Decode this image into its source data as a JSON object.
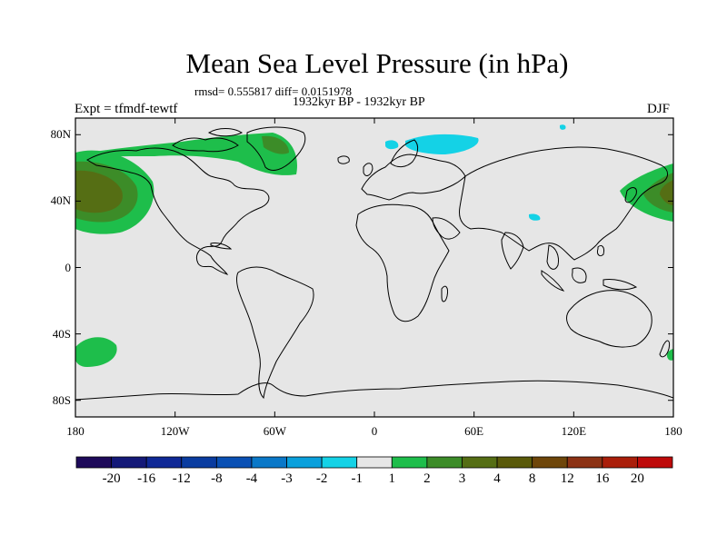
{
  "title": "Mean Sea Level Pressure (in hPa)",
  "stats": "rmsd= 0.555817 diff= 0.0151978",
  "period": "1932kyr BP - 1932kyr BP",
  "experiment": "Expt = tfmdf-tewtf",
  "season": "DJF",
  "map": {
    "projection": "cylindrical-equidistant",
    "lon_range": [
      -180,
      180
    ],
    "lat_range": [
      -90,
      90
    ],
    "lat_ticks": [
      {
        "value": 80,
        "label": "80N"
      },
      {
        "value": 40,
        "label": "40N"
      },
      {
        "value": 0,
        "label": "0"
      },
      {
        "value": -40,
        "label": "40S"
      },
      {
        "value": -80,
        "label": "80S"
      }
    ],
    "lon_ticks": [
      {
        "value": -180,
        "label": "180"
      },
      {
        "value": -120,
        "label": "120W"
      },
      {
        "value": -60,
        "label": "60W"
      },
      {
        "value": 0,
        "label": "0"
      },
      {
        "value": 60,
        "label": "60E"
      },
      {
        "value": 120,
        "label": "120E"
      },
      {
        "value": 180,
        "label": "180"
      }
    ],
    "background_color": "#e6e6e6",
    "anomaly_regions": [
      {
        "name": "north-pacific-positive",
        "min_level": 2,
        "max_level": 4
      },
      {
        "name": "north-atlantic-greenland-positive",
        "min_level": 1,
        "max_level": 2
      },
      {
        "name": "barents-sea-negative",
        "min_level": -2,
        "max_level": -1
      },
      {
        "name": "south-pacific-positive",
        "min_level": 1,
        "max_level": 2
      },
      {
        "name": "nw-pacific-positive",
        "min_level": 2,
        "max_level": 4
      }
    ]
  },
  "colorbar": {
    "colors": [
      "#1e0a5a",
      "#141978",
      "#0f2896",
      "#0a3ca0",
      "#0a50b4",
      "#0a78c8",
      "#0aa0dc",
      "#14d2e6",
      "#e6e6e6",
      "#1ebe4b",
      "#3c8c28",
      "#556e14",
      "#5a5a0a",
      "#6e460a",
      "#8c3214",
      "#aa1e0a",
      "#be0a0a"
    ],
    "labels": [
      "-20",
      "-16",
      "-12",
      "-8",
      "-4",
      "-3",
      "-2",
      "-1",
      "1",
      "2",
      "3",
      "4",
      "8",
      "12",
      "16",
      "20"
    ]
  }
}
